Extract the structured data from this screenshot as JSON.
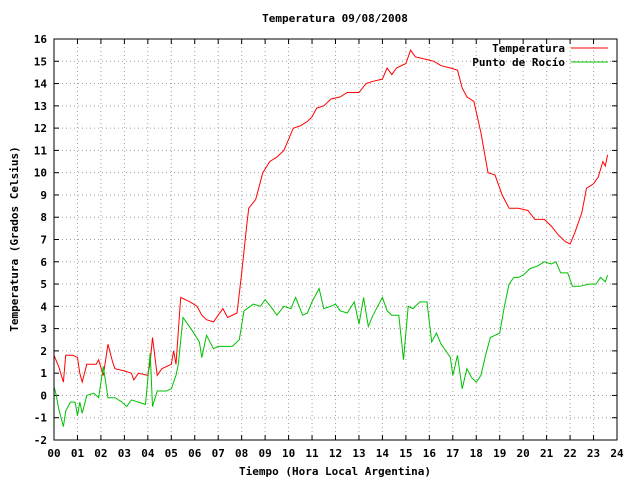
{
  "chart_data": {
    "type": "line",
    "title": "Temperatura 09/08/2008",
    "xlabel": "Tiempo (Hora Local Argentina)",
    "ylabel": "Temperatura (Grados Celsius)",
    "xlim": [
      0,
      24
    ],
    "ylim": [
      -2,
      16
    ],
    "x_ticks": [
      0,
      1,
      2,
      3,
      4,
      5,
      6,
      7,
      8,
      9,
      10,
      11,
      12,
      13,
      14,
      15,
      16,
      17,
      18,
      19,
      20,
      21,
      22,
      23,
      24
    ],
    "x_tick_labels": [
      "00",
      "01",
      "02",
      "03",
      "04",
      "05",
      "06",
      "07",
      "08",
      "09",
      "10",
      "11",
      "12",
      "13",
      "14",
      "15",
      "16",
      "17",
      "18",
      "19",
      "20",
      "21",
      "22",
      "23",
      "24"
    ],
    "y_ticks": [
      -2,
      -1,
      0,
      1,
      2,
      3,
      4,
      5,
      6,
      7,
      8,
      9,
      10,
      11,
      12,
      13,
      14,
      15,
      16
    ],
    "grid": true,
    "legend_position": "top-right",
    "series": [
      {
        "name": "Temperatura",
        "color": "#ff0000",
        "points": [
          [
            0.0,
            1.8
          ],
          [
            0.2,
            1.3
          ],
          [
            0.4,
            0.6
          ],
          [
            0.5,
            1.8
          ],
          [
            0.8,
            1.8
          ],
          [
            1.0,
            1.7
          ],
          [
            1.1,
            1.0
          ],
          [
            1.2,
            0.6
          ],
          [
            1.4,
            1.4
          ],
          [
            1.8,
            1.4
          ],
          [
            1.9,
            1.6
          ],
          [
            2.1,
            0.9
          ],
          [
            2.3,
            2.3
          ],
          [
            2.5,
            1.5
          ],
          [
            2.6,
            1.2
          ],
          [
            3.0,
            1.1
          ],
          [
            3.3,
            1.0
          ],
          [
            3.4,
            0.7
          ],
          [
            3.6,
            1.0
          ],
          [
            4.0,
            0.9
          ],
          [
            4.1,
            1.5
          ],
          [
            4.2,
            2.6
          ],
          [
            4.4,
            0.9
          ],
          [
            4.6,
            1.2
          ],
          [
            5.0,
            1.4
          ],
          [
            5.1,
            2.0
          ],
          [
            5.2,
            1.4
          ],
          [
            5.4,
            4.4
          ],
          [
            5.8,
            4.2
          ],
          [
            6.1,
            4.0
          ],
          [
            6.3,
            3.6
          ],
          [
            6.5,
            3.4
          ],
          [
            6.8,
            3.3
          ],
          [
            7.0,
            3.6
          ],
          [
            7.2,
            3.9
          ],
          [
            7.4,
            3.5
          ],
          [
            7.8,
            3.7
          ],
          [
            8.0,
            5.5
          ],
          [
            8.2,
            7.5
          ],
          [
            8.3,
            8.4
          ],
          [
            8.6,
            8.8
          ],
          [
            8.9,
            10.0
          ],
          [
            9.2,
            10.5
          ],
          [
            9.5,
            10.7
          ],
          [
            9.8,
            11.0
          ],
          [
            10.0,
            11.5
          ],
          [
            10.2,
            12.0
          ],
          [
            10.5,
            12.1
          ],
          [
            10.8,
            12.3
          ],
          [
            11.0,
            12.5
          ],
          [
            11.2,
            12.9
          ],
          [
            11.5,
            13.0
          ],
          [
            11.8,
            13.3
          ],
          [
            12.2,
            13.4
          ],
          [
            12.5,
            13.6
          ],
          [
            13.0,
            13.6
          ],
          [
            13.3,
            14.0
          ],
          [
            13.6,
            14.1
          ],
          [
            14.0,
            14.2
          ],
          [
            14.2,
            14.7
          ],
          [
            14.4,
            14.4
          ],
          [
            14.6,
            14.7
          ],
          [
            15.0,
            14.9
          ],
          [
            15.2,
            15.5
          ],
          [
            15.4,
            15.2
          ],
          [
            15.8,
            15.1
          ],
          [
            16.2,
            15.0
          ],
          [
            16.5,
            14.8
          ],
          [
            16.9,
            14.7
          ],
          [
            17.2,
            14.6
          ],
          [
            17.4,
            13.8
          ],
          [
            17.6,
            13.4
          ],
          [
            17.9,
            13.2
          ],
          [
            18.2,
            11.8
          ],
          [
            18.5,
            10.0
          ],
          [
            18.8,
            9.9
          ],
          [
            19.1,
            9.0
          ],
          [
            19.4,
            8.4
          ],
          [
            19.8,
            8.4
          ],
          [
            20.2,
            8.3
          ],
          [
            20.5,
            7.9
          ],
          [
            20.9,
            7.9
          ],
          [
            21.2,
            7.6
          ],
          [
            21.5,
            7.2
          ],
          [
            21.8,
            6.9
          ],
          [
            22.0,
            6.8
          ],
          [
            22.2,
            7.3
          ],
          [
            22.5,
            8.2
          ],
          [
            22.7,
            9.3
          ],
          [
            23.0,
            9.5
          ],
          [
            23.2,
            9.8
          ],
          [
            23.4,
            10.5
          ],
          [
            23.5,
            10.3
          ],
          [
            23.6,
            10.8
          ]
        ]
      },
      {
        "name": "Punto de Rocío",
        "color": "#00c000",
        "points": [
          [
            0.0,
            0.4
          ],
          [
            0.1,
            0.0
          ],
          [
            0.2,
            -0.6
          ],
          [
            0.4,
            -1.4
          ],
          [
            0.5,
            -0.7
          ],
          [
            0.7,
            -0.3
          ],
          [
            0.9,
            -0.3
          ],
          [
            1.0,
            -0.9
          ],
          [
            1.1,
            -0.3
          ],
          [
            1.2,
            -0.8
          ],
          [
            1.4,
            0.0
          ],
          [
            1.7,
            0.1
          ],
          [
            1.9,
            -0.1
          ],
          [
            2.1,
            1.3
          ],
          [
            2.3,
            -0.1
          ],
          [
            2.6,
            -0.1
          ],
          [
            2.9,
            -0.3
          ],
          [
            3.1,
            -0.5
          ],
          [
            3.3,
            -0.2
          ],
          [
            3.6,
            -0.3
          ],
          [
            3.9,
            -0.4
          ],
          [
            4.1,
            1.9
          ],
          [
            4.2,
            -0.5
          ],
          [
            4.4,
            0.2
          ],
          [
            4.8,
            0.2
          ],
          [
            5.0,
            0.3
          ],
          [
            5.2,
            0.9
          ],
          [
            5.3,
            1.4
          ],
          [
            5.5,
            3.5
          ],
          [
            5.9,
            2.9
          ],
          [
            6.2,
            2.4
          ],
          [
            6.3,
            1.7
          ],
          [
            6.5,
            2.7
          ],
          [
            6.8,
            2.1
          ],
          [
            7.0,
            2.2
          ],
          [
            7.3,
            2.2
          ],
          [
            7.6,
            2.2
          ],
          [
            7.9,
            2.5
          ],
          [
            8.1,
            3.8
          ],
          [
            8.5,
            4.1
          ],
          [
            8.8,
            4.0
          ],
          [
            9.0,
            4.3
          ],
          [
            9.3,
            3.9
          ],
          [
            9.5,
            3.6
          ],
          [
            9.8,
            4.0
          ],
          [
            10.1,
            3.9
          ],
          [
            10.3,
            4.4
          ],
          [
            10.6,
            3.6
          ],
          [
            10.8,
            3.7
          ],
          [
            11.0,
            4.2
          ],
          [
            11.3,
            4.8
          ],
          [
            11.5,
            3.9
          ],
          [
            11.8,
            4.0
          ],
          [
            12.0,
            4.1
          ],
          [
            12.2,
            3.8
          ],
          [
            12.5,
            3.7
          ],
          [
            12.8,
            4.2
          ],
          [
            13.0,
            3.2
          ],
          [
            13.2,
            4.4
          ],
          [
            13.4,
            3.1
          ],
          [
            13.6,
            3.6
          ],
          [
            13.8,
            4.0
          ],
          [
            14.0,
            4.4
          ],
          [
            14.2,
            3.8
          ],
          [
            14.4,
            3.6
          ],
          [
            14.7,
            3.6
          ],
          [
            14.9,
            1.6
          ],
          [
            15.1,
            4.0
          ],
          [
            15.3,
            3.9
          ],
          [
            15.6,
            4.2
          ],
          [
            15.9,
            4.2
          ],
          [
            16.1,
            2.4
          ],
          [
            16.3,
            2.8
          ],
          [
            16.5,
            2.3
          ],
          [
            16.7,
            2.0
          ],
          [
            16.9,
            1.7
          ],
          [
            17.0,
            0.9
          ],
          [
            17.2,
            1.8
          ],
          [
            17.4,
            0.3
          ],
          [
            17.6,
            1.2
          ],
          [
            17.8,
            0.8
          ],
          [
            18.0,
            0.6
          ],
          [
            18.2,
            0.9
          ],
          [
            18.4,
            1.8
          ],
          [
            18.6,
            2.6
          ],
          [
            18.8,
            2.7
          ],
          [
            19.0,
            2.8
          ],
          [
            19.2,
            4.0
          ],
          [
            19.4,
            5.0
          ],
          [
            19.6,
            5.3
          ],
          [
            19.8,
            5.3
          ],
          [
            20.0,
            5.4
          ],
          [
            20.3,
            5.7
          ],
          [
            20.6,
            5.8
          ],
          [
            20.9,
            6.0
          ],
          [
            21.2,
            5.9
          ],
          [
            21.4,
            6.0
          ],
          [
            21.6,
            5.5
          ],
          [
            21.9,
            5.5
          ],
          [
            22.1,
            4.9
          ],
          [
            22.4,
            4.9
          ],
          [
            22.8,
            5.0
          ],
          [
            23.1,
            5.0
          ],
          [
            23.3,
            5.3
          ],
          [
            23.5,
            5.1
          ],
          [
            23.6,
            5.4
          ]
        ]
      }
    ]
  }
}
